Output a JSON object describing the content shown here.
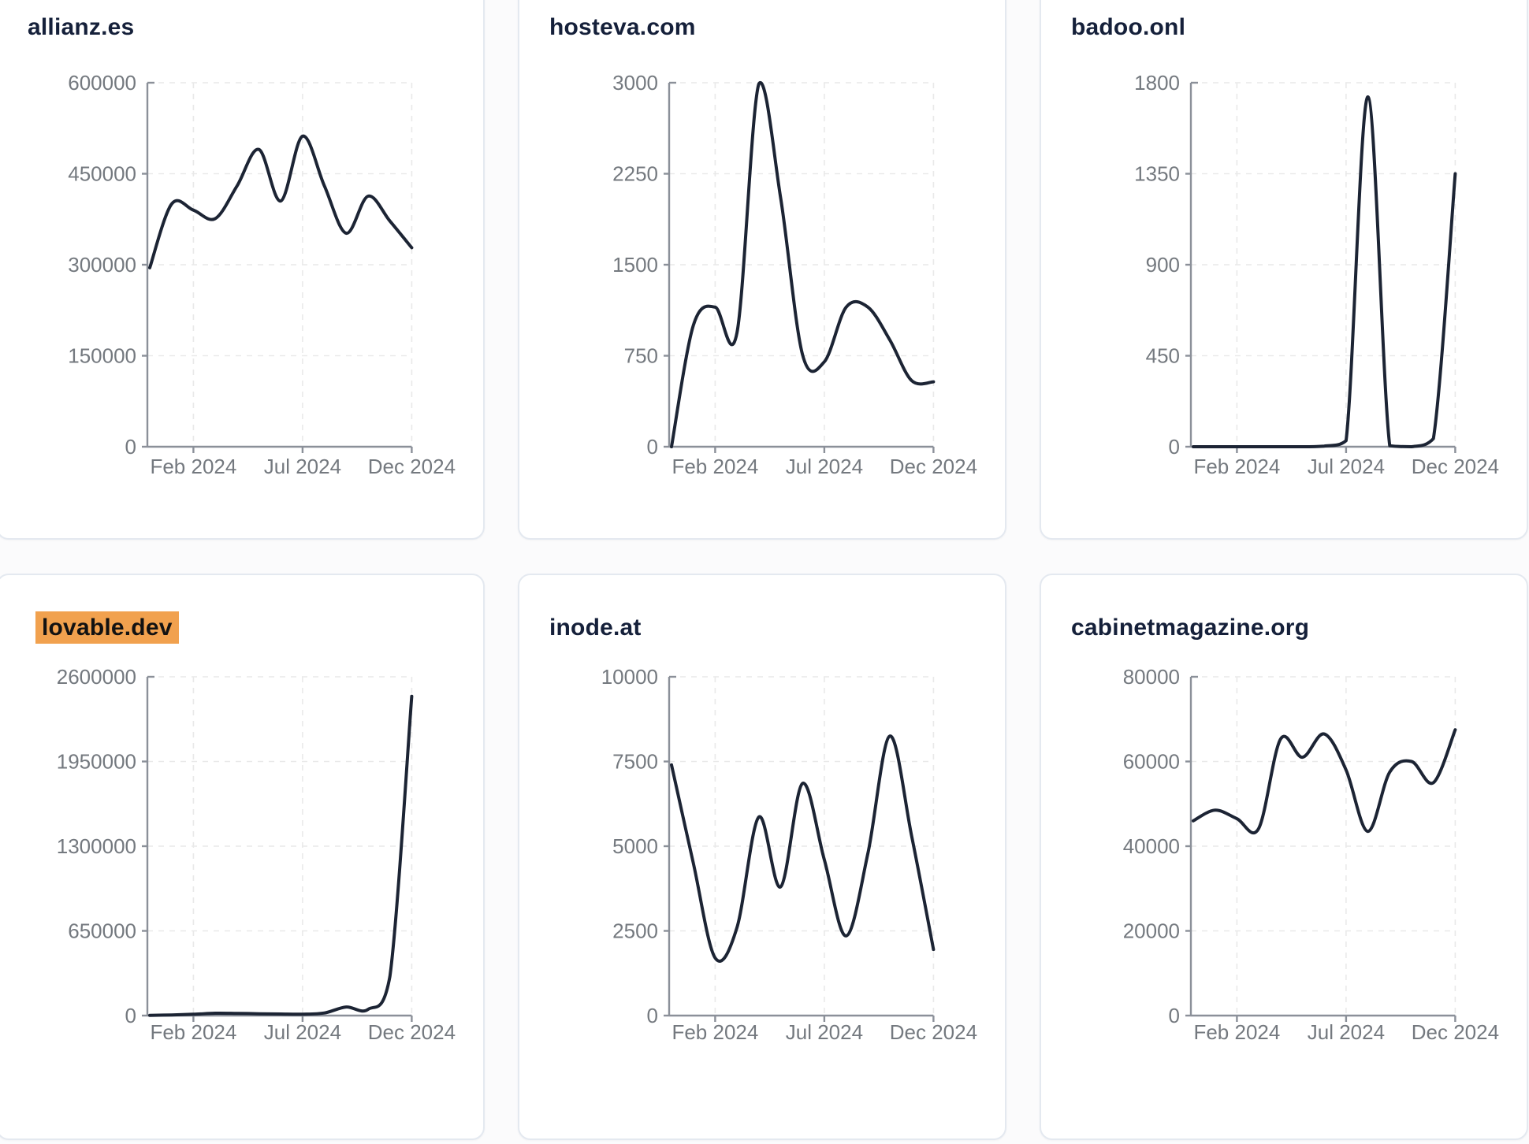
{
  "style": {
    "page_bg": "#fbfbfc",
    "card_bg": "#ffffff",
    "card_border": "#e4e9f0",
    "line_color": "#1c2434",
    "title_color": "#15203a",
    "tick_label_color": "#74797f",
    "axis_color": "#8b9099",
    "grid_color": "#e9e9e9",
    "highlight_bg": "#f1a14e",
    "highlight_text": "#121212"
  },
  "x_axis": {
    "tick_labels": [
      "Feb 2024",
      "Jul 2024",
      "Dec 2024"
    ],
    "tick_indices": [
      2,
      7,
      12
    ]
  },
  "chart_data": [
    {
      "type": "line",
      "title": "allianz.es",
      "highlighted": false,
      "x": [
        "Dec 2023",
        "Jan 2024",
        "Feb 2024",
        "Mar 2024",
        "Apr 2024",
        "May 2024",
        "Jun 2024",
        "Jul 2024",
        "Aug 2024",
        "Sep 2024",
        "Oct 2024",
        "Nov 2024",
        "Dec 2024"
      ],
      "values": [
        295000,
        400000,
        390000,
        376000,
        430000,
        490000,
        405000,
        512000,
        430000,
        352000,
        413000,
        372000,
        328000
      ],
      "ylim": [
        0,
        600000
      ],
      "y_ticks": [
        0,
        150000,
        300000,
        450000,
        600000
      ],
      "x_tick_labels": [
        "Feb 2024",
        "Jul 2024",
        "Dec 2024"
      ],
      "grid": true,
      "legend": "none"
    },
    {
      "type": "line",
      "title": "hosteva.com",
      "highlighted": false,
      "x": [
        "Dec 2023",
        "Jan 2024",
        "Feb 2024",
        "Mar 2024",
        "Apr 2024",
        "May 2024",
        "Jun 2024",
        "Jul 2024",
        "Aug 2024",
        "Sep 2024",
        "Oct 2024",
        "Nov 2024",
        "Dec 2024"
      ],
      "values": [
        0,
        1000,
        1150,
        940,
        2990,
        2050,
        760,
        700,
        1150,
        1150,
        880,
        545,
        535
      ],
      "ylim": [
        0,
        3000
      ],
      "y_ticks": [
        0,
        750,
        1500,
        2250,
        3000
      ],
      "x_tick_labels": [
        "Feb 2024",
        "Jul 2024",
        "Dec 2024"
      ],
      "grid": true,
      "legend": "none"
    },
    {
      "type": "line",
      "title": "badoo.onl",
      "highlighted": false,
      "x": [
        "Dec 2023",
        "Jan 2024",
        "Feb 2024",
        "Mar 2024",
        "Apr 2024",
        "May 2024",
        "Jun 2024",
        "Jul 2024",
        "Aug 2024",
        "Sep 2024",
        "Oct 2024",
        "Nov 2024",
        "Dec 2024"
      ],
      "values": [
        0,
        0,
        0,
        0,
        0,
        0,
        3,
        30,
        1730,
        5,
        0,
        40,
        1350
      ],
      "ylim": [
        0,
        1800
      ],
      "y_ticks": [
        0,
        450,
        900,
        1350,
        1800
      ],
      "x_tick_labels": [
        "Feb 2024",
        "Jul 2024",
        "Dec 2024"
      ],
      "grid": true,
      "legend": "none"
    },
    {
      "type": "line",
      "title": "lovable.dev",
      "highlighted": true,
      "x": [
        "Dec 2023",
        "Jan 2024",
        "Feb 2024",
        "Mar 2024",
        "Apr 2024",
        "May 2024",
        "Jun 2024",
        "Jul 2024",
        "Aug 2024",
        "Sep 2024",
        "Oct 2024",
        "Nov 2024",
        "Dec 2024"
      ],
      "values": [
        2000,
        5000,
        10000,
        18000,
        17000,
        14000,
        12000,
        11000,
        20000,
        66000,
        48000,
        300000,
        2450000
      ],
      "ylim": [
        0,
        2600000
      ],
      "y_ticks": [
        0,
        650000,
        1300000,
        1950000,
        2600000
      ],
      "x_tick_labels": [
        "Feb 2024",
        "Jul 2024",
        "Dec 2024"
      ],
      "grid": true,
      "legend": "none"
    },
    {
      "type": "line",
      "title": "inode.at",
      "highlighted": false,
      "x": [
        "Dec 2023",
        "Jan 2024",
        "Feb 2024",
        "Mar 2024",
        "Apr 2024",
        "May 2024",
        "Jun 2024",
        "Jul 2024",
        "Aug 2024",
        "Sep 2024",
        "Oct 2024",
        "Nov 2024",
        "Dec 2024"
      ],
      "values": [
        7400,
        4500,
        1700,
        2600,
        5860,
        3800,
        6850,
        4600,
        2350,
        4800,
        8250,
        5300,
        1950
      ],
      "ylim": [
        0,
        10000
      ],
      "y_ticks": [
        0,
        2500,
        5000,
        7500,
        10000
      ],
      "x_tick_labels": [
        "Feb 2024",
        "Jul 2024",
        "Dec 2024"
      ],
      "grid": true,
      "legend": "none"
    },
    {
      "type": "line",
      "title": "cabinetmagazine.org",
      "highlighted": false,
      "x": [
        "Dec 2023",
        "Jan 2024",
        "Feb 2024",
        "Mar 2024",
        "Apr 2024",
        "May 2024",
        "Jun 2024",
        "Jul 2024",
        "Aug 2024",
        "Sep 2024",
        "Oct 2024",
        "Nov 2024",
        "Dec 2024"
      ],
      "values": [
        46000,
        48500,
        46500,
        44200,
        65300,
        61000,
        66500,
        58000,
        43500,
        57500,
        60000,
        55000,
        67500
      ],
      "ylim": [
        0,
        80000
      ],
      "y_ticks": [
        0,
        20000,
        40000,
        60000,
        80000
      ],
      "x_tick_labels": [
        "Feb 2024",
        "Jul 2024",
        "Dec 2024"
      ],
      "grid": true,
      "legend": "none"
    }
  ]
}
